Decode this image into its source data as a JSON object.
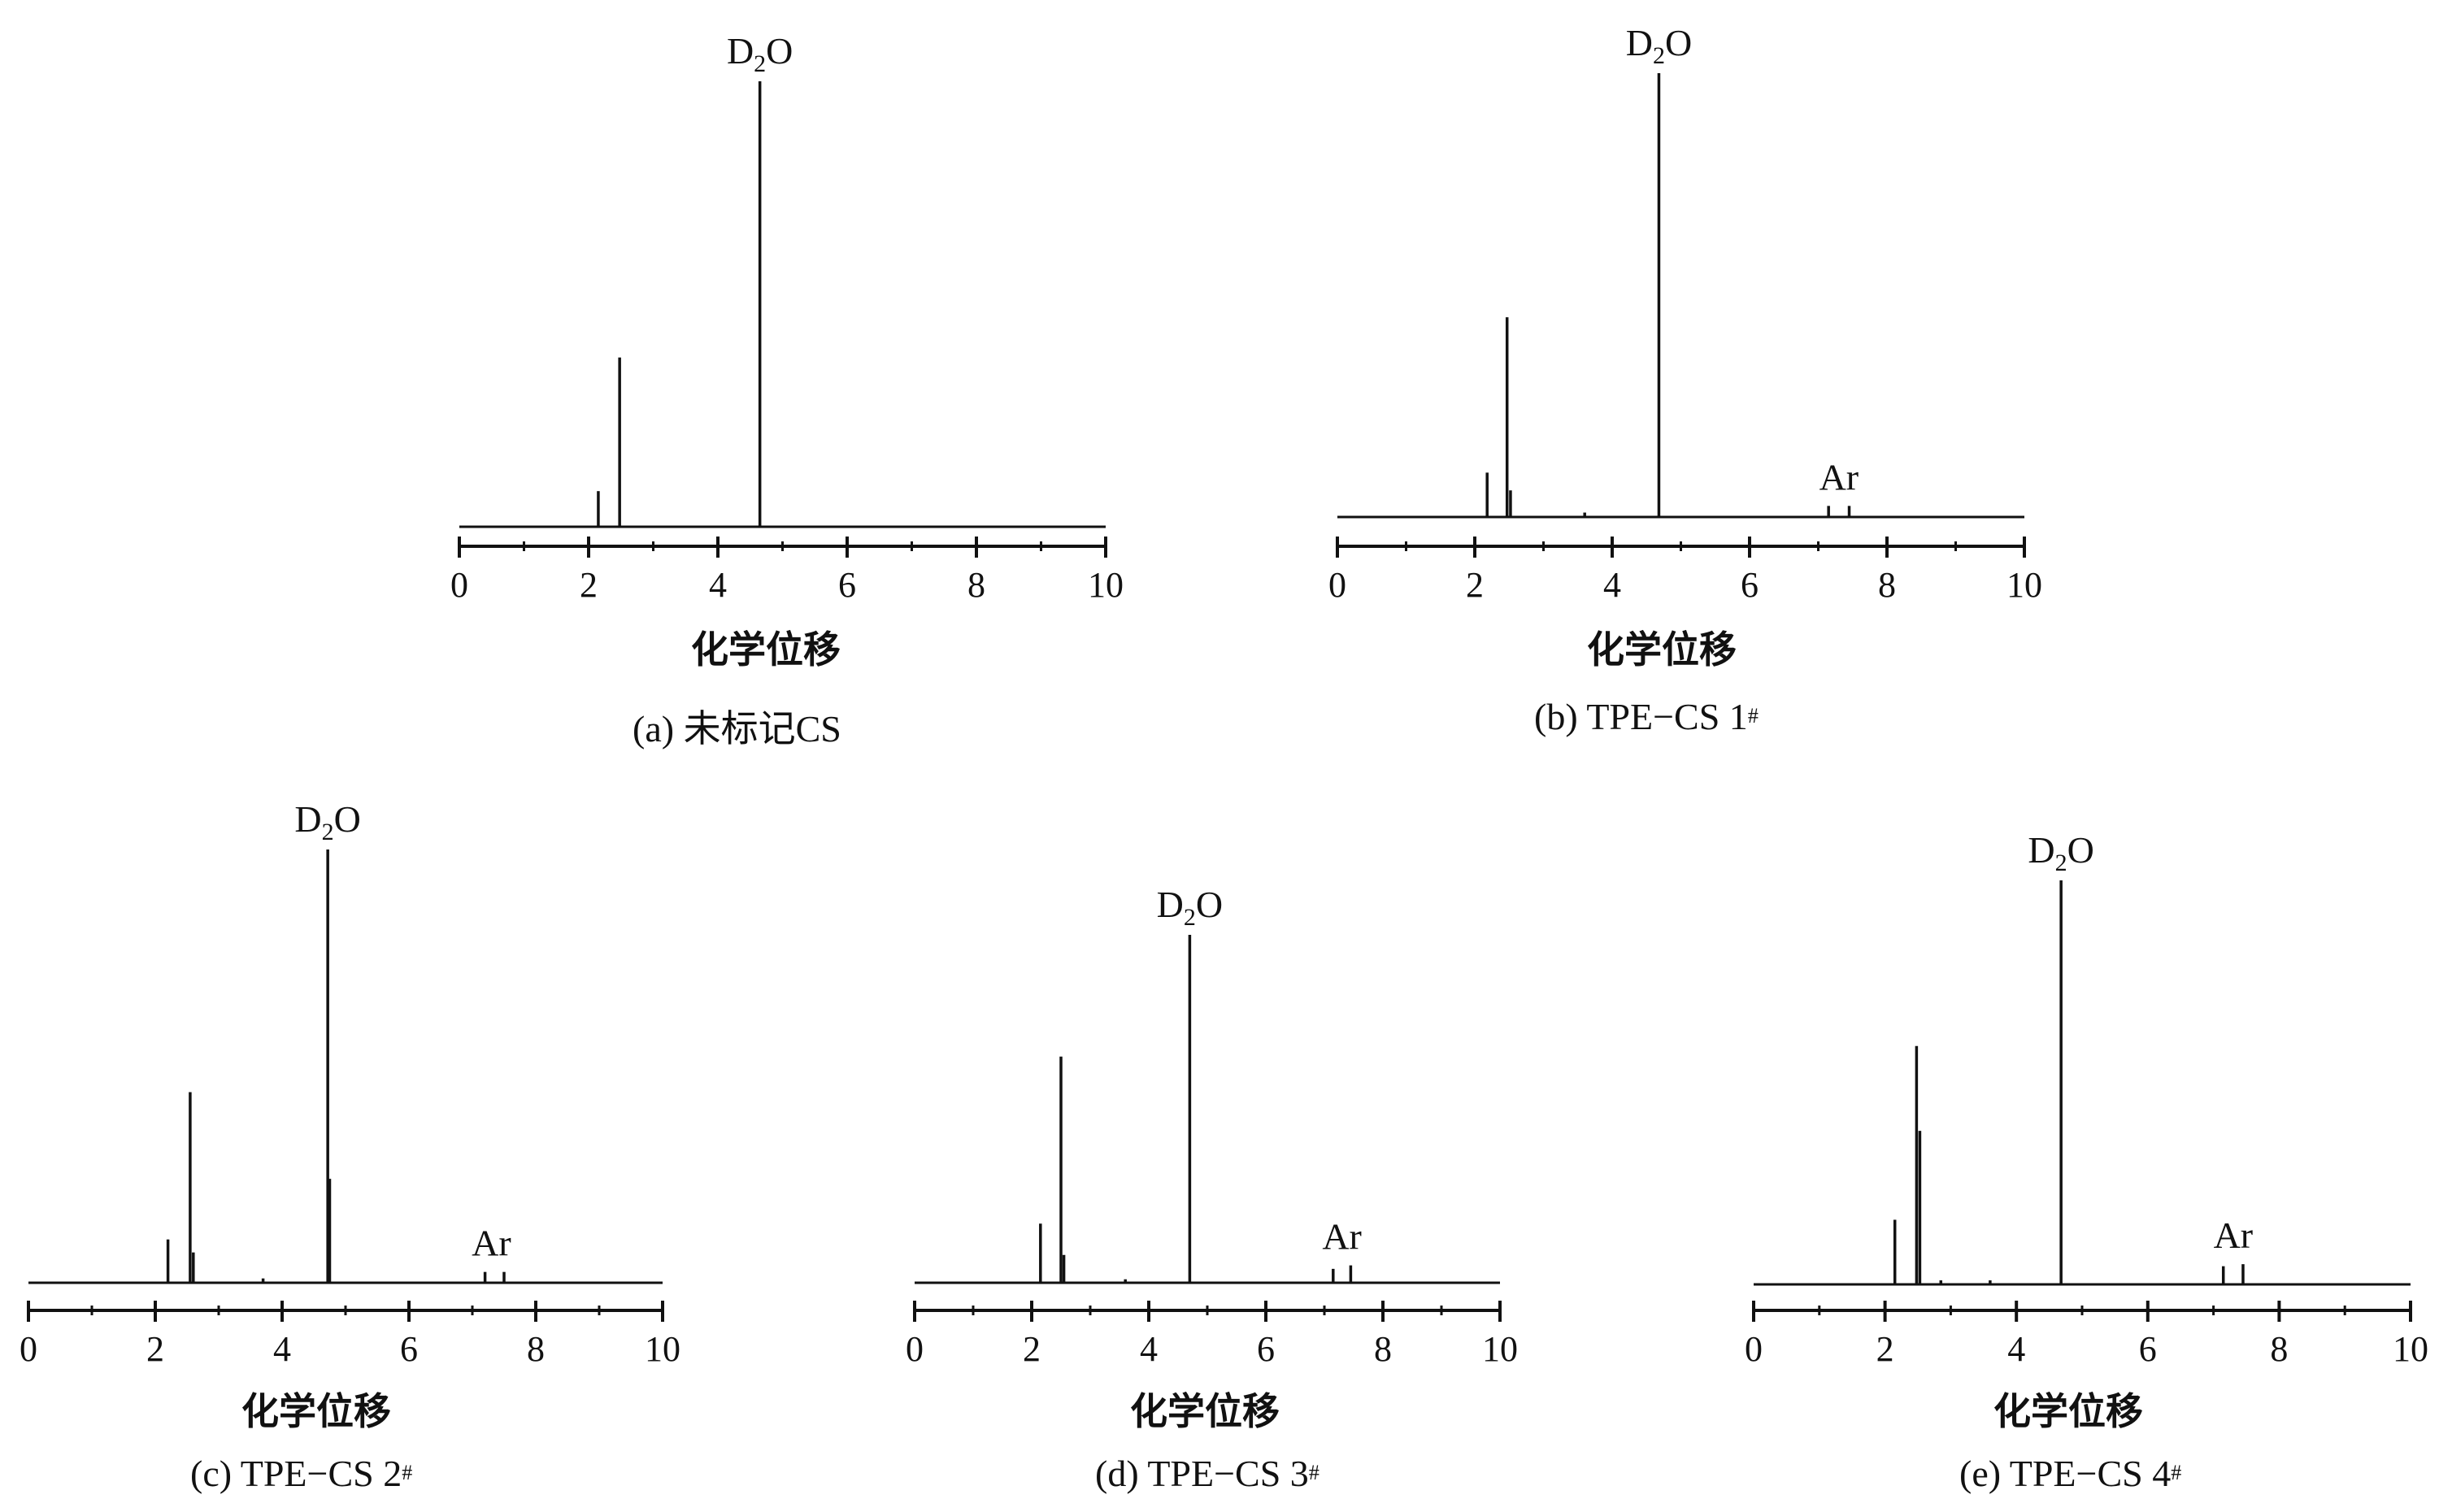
{
  "chart_data": [
    {
      "type": "line",
      "caption": {
        "prefix": "(a) ",
        "label": "未标记CS",
        "sup": ""
      },
      "xlabel": "化学位移",
      "xlim": [
        0,
        10
      ],
      "xticks": [
        0,
        2,
        4,
        6,
        8,
        10
      ],
      "peaks": [
        {
          "x": 2.15,
          "h": 0.08
        },
        {
          "x": 2.48,
          "h": 0.38
        },
        {
          "x": 4.65,
          "h": 1.0
        }
      ],
      "annotations": [
        {
          "text": "D",
          "sub": "2",
          "tail": "O",
          "x": 4.65
        }
      ]
    },
    {
      "type": "line",
      "caption": {
        "prefix": "(b) ",
        "label": "TPE−CS 1",
        "sup": "#"
      },
      "xlabel": "化学位移",
      "xlim": [
        0,
        10
      ],
      "xticks": [
        0,
        2,
        4,
        6,
        8,
        10
      ],
      "peaks": [
        {
          "x": 2.18,
          "h": 0.1
        },
        {
          "x": 2.47,
          "h": 0.45
        },
        {
          "x": 2.52,
          "h": 0.06
        },
        {
          "x": 3.6,
          "h": 0.01
        },
        {
          "x": 4.68,
          "h": 1.0
        },
        {
          "x": 7.15,
          "h": 0.025
        },
        {
          "x": 7.45,
          "h": 0.025
        }
      ],
      "annotations": [
        {
          "text": "D",
          "sub": "2",
          "tail": "O",
          "x": 4.68
        },
        {
          "text": "Ar",
          "sub": "",
          "tail": "",
          "x": 7.3
        }
      ]
    },
    {
      "type": "line",
      "caption": {
        "prefix": "(c) ",
        "label": "TPE−CS 2",
        "sup": "#"
      },
      "xlabel": "化学位移",
      "xlim": [
        0,
        10
      ],
      "xticks": [
        0,
        2,
        4,
        6,
        8,
        10
      ],
      "peaks": [
        {
          "x": 2.2,
          "h": 0.1
        },
        {
          "x": 2.55,
          "h": 0.44
        },
        {
          "x": 2.6,
          "h": 0.07
        },
        {
          "x": 3.7,
          "h": 0.01
        },
        {
          "x": 4.72,
          "h": 1.0
        },
        {
          "x": 4.75,
          "h": 0.24
        },
        {
          "x": 7.2,
          "h": 0.025
        },
        {
          "x": 7.5,
          "h": 0.025
        }
      ],
      "annotations": [
        {
          "text": "D",
          "sub": "2",
          "tail": "O",
          "x": 4.72
        },
        {
          "text": "Ar",
          "sub": "",
          "tail": "",
          "x": 7.3
        }
      ]
    },
    {
      "type": "line",
      "caption": {
        "prefix": "(d) ",
        "label": "TPE−CS 3",
        "sup": "#"
      },
      "xlabel": "化学位移",
      "xlim": [
        0,
        10
      ],
      "xticks": [
        0,
        2,
        4,
        6,
        8,
        10
      ],
      "peaks": [
        {
          "x": 2.15,
          "h": 0.17
        },
        {
          "x": 2.5,
          "h": 0.65
        },
        {
          "x": 2.55,
          "h": 0.08
        },
        {
          "x": 3.6,
          "h": 0.01
        },
        {
          "x": 4.7,
          "h": 1.0
        },
        {
          "x": 7.15,
          "h": 0.04
        },
        {
          "x": 7.45,
          "h": 0.05
        }
      ],
      "annotations": [
        {
          "text": "D",
          "sub": "2",
          "tail": "O",
          "x": 4.7
        },
        {
          "text": "Ar",
          "sub": "",
          "tail": "",
          "x": 7.3
        }
      ]
    },
    {
      "type": "line",
      "caption": {
        "prefix": "(e) ",
        "label": "TPE−CS 4",
        "sup": "#"
      },
      "xlabel": "化学位移",
      "xlim": [
        0,
        10
      ],
      "xticks": [
        0,
        2,
        4,
        6,
        8,
        10
      ],
      "peaks": [
        {
          "x": 2.15,
          "h": 0.16
        },
        {
          "x": 2.48,
          "h": 0.59
        },
        {
          "x": 2.53,
          "h": 0.38
        },
        {
          "x": 2.85,
          "h": 0.01
        },
        {
          "x": 3.6,
          "h": 0.01
        },
        {
          "x": 4.68,
          "h": 1.0
        },
        {
          "x": 7.15,
          "h": 0.045
        },
        {
          "x": 7.45,
          "h": 0.05
        }
      ],
      "annotations": [
        {
          "text": "D",
          "sub": "2",
          "tail": "O",
          "x": 4.68
        },
        {
          "text": "Ar",
          "sub": "",
          "tail": "",
          "x": 7.3
        }
      ]
    }
  ]
}
